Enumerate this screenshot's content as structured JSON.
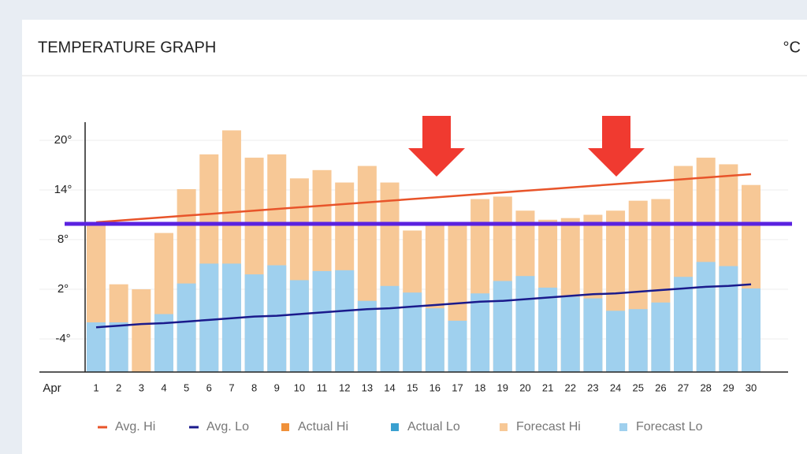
{
  "chart_data": {
    "type": "bar",
    "title": "TEMPERATURE GRAPH",
    "unit": "°C",
    "x_label": "Apr",
    "categories": [
      "1",
      "2",
      "3",
      "4",
      "5",
      "6",
      "7",
      "8",
      "9",
      "10",
      "11",
      "12",
      "13",
      "14",
      "15",
      "16",
      "17",
      "18",
      "19",
      "20",
      "21",
      "22",
      "23",
      "24",
      "25",
      "26",
      "27",
      "28",
      "29",
      "30"
    ],
    "ylim": [
      -8,
      22
    ],
    "yticks": [
      {
        "value": -4,
        "label": "-4°"
      },
      {
        "value": 2,
        "label": "2°"
      },
      {
        "value": 8,
        "label": "8°"
      },
      {
        "value": 14,
        "label": "14°"
      },
      {
        "value": 20,
        "label": "20°"
      }
    ],
    "grid": true,
    "reference_line": 9.9,
    "reference_color": "#5a22e0",
    "series": [
      {
        "name": "Avg. Hi",
        "kind": "line",
        "color": "#e8542a",
        "values": [
          10.1,
          10.3,
          10.5,
          10.7,
          10.9,
          11.1,
          11.3,
          11.5,
          11.7,
          11.9,
          12.1,
          12.3,
          12.5,
          12.7,
          12.9,
          13.1,
          13.3,
          13.5,
          13.7,
          13.9,
          14.1,
          14.3,
          14.5,
          14.7,
          14.9,
          15.1,
          15.3,
          15.5,
          15.7,
          15.9
        ]
      },
      {
        "name": "Avg. Lo",
        "kind": "line",
        "color": "#1a1a8c",
        "values": [
          -2.6,
          -2.4,
          -2.2,
          -2.1,
          -1.9,
          -1.7,
          -1.5,
          -1.3,
          -1.2,
          -1.0,
          -0.8,
          -0.6,
          -0.4,
          -0.3,
          -0.1,
          0.1,
          0.3,
          0.5,
          0.6,
          0.8,
          1.0,
          1.2,
          1.4,
          1.5,
          1.7,
          1.9,
          2.1,
          2.3,
          2.4,
          2.6
        ]
      },
      {
        "name": "Actual Hi",
        "kind": "bar",
        "color": "#f0913a",
        "values": [
          null,
          null,
          null,
          null,
          null,
          null,
          null,
          null,
          null,
          null,
          null,
          null,
          null,
          null,
          null,
          null,
          null,
          null,
          null,
          null,
          null,
          null,
          null,
          null,
          null,
          null,
          null,
          null,
          null,
          null
        ]
      },
      {
        "name": "Actual Lo",
        "kind": "bar",
        "color": "#3aa0d0",
        "values": [
          null,
          null,
          null,
          null,
          null,
          null,
          null,
          null,
          null,
          null,
          null,
          null,
          null,
          null,
          null,
          null,
          null,
          null,
          null,
          null,
          null,
          null,
          null,
          null,
          null,
          null,
          null,
          null,
          null,
          null
        ]
      },
      {
        "name": "Forecast Hi",
        "kind": "bar",
        "color": "#f7c896",
        "values": [
          9.8,
          2.6,
          2.0,
          8.8,
          14.1,
          18.3,
          21.2,
          17.9,
          18.3,
          15.4,
          16.4,
          14.9,
          16.9,
          14.9,
          9.1,
          9.7,
          9.7,
          12.9,
          13.2,
          11.5,
          10.4,
          10.6,
          11.0,
          11.5,
          12.7,
          12.9,
          16.9,
          17.9,
          17.1,
          14.6
        ]
      },
      {
        "name": "Forecast Lo",
        "kind": "bar",
        "color": "#9fd0ee",
        "values": [
          -2.0,
          -2.0,
          null,
          -1.0,
          2.7,
          5.1,
          5.1,
          3.8,
          4.9,
          3.1,
          4.2,
          4.3,
          0.6,
          2.4,
          1.6,
          -0.3,
          -1.8,
          1.5,
          3.0,
          3.6,
          2.2,
          1.1,
          0.9,
          -0.6,
          -0.4,
          0.4,
          3.5,
          5.3,
          4.8,
          2.1
        ]
      }
    ]
  }
}
